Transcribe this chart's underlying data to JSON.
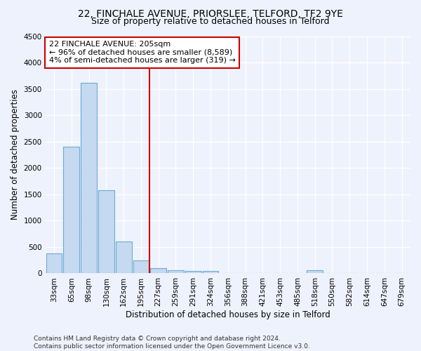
{
  "title1": "22, FINCHALE AVENUE, PRIORSLEE, TELFORD, TF2 9YE",
  "title2": "Size of property relative to detached houses in Telford",
  "xlabel": "Distribution of detached houses by size in Telford",
  "ylabel": "Number of detached properties",
  "categories": [
    "33sqm",
    "65sqm",
    "98sqm",
    "130sqm",
    "162sqm",
    "195sqm",
    "227sqm",
    "259sqm",
    "291sqm",
    "324sqm",
    "356sqm",
    "388sqm",
    "421sqm",
    "453sqm",
    "485sqm",
    "518sqm",
    "550sqm",
    "582sqm",
    "614sqm",
    "647sqm",
    "679sqm"
  ],
  "values": [
    380,
    2400,
    3620,
    1580,
    610,
    250,
    100,
    60,
    50,
    50,
    0,
    0,
    0,
    0,
    0,
    60,
    0,
    0,
    0,
    0,
    0
  ],
  "bar_color": "#c5d9f0",
  "bar_edge_color": "#6aaad4",
  "vline_x": 5.5,
  "vline_color": "#cc0000",
  "annotation_text": "22 FINCHALE AVENUE: 205sqm\n← 96% of detached houses are smaller (8,589)\n4% of semi-detached houses are larger (319) →",
  "annotation_box_color": "#ffffff",
  "annotation_box_edge": "#cc0000",
  "ylim": [
    0,
    4500
  ],
  "yticks": [
    0,
    500,
    1000,
    1500,
    2000,
    2500,
    3000,
    3500,
    4000,
    4500
  ],
  "footer": "Contains HM Land Registry data © Crown copyright and database right 2024.\nContains public sector information licensed under the Open Government Licence v3.0.",
  "bg_color": "#eef2fc",
  "grid_color": "#ffffff",
  "title_fontsize": 10,
  "subtitle_fontsize": 9,
  "axis_label_fontsize": 8.5,
  "tick_fontsize": 7.5,
  "annotation_fontsize": 8,
  "footer_fontsize": 6.5
}
